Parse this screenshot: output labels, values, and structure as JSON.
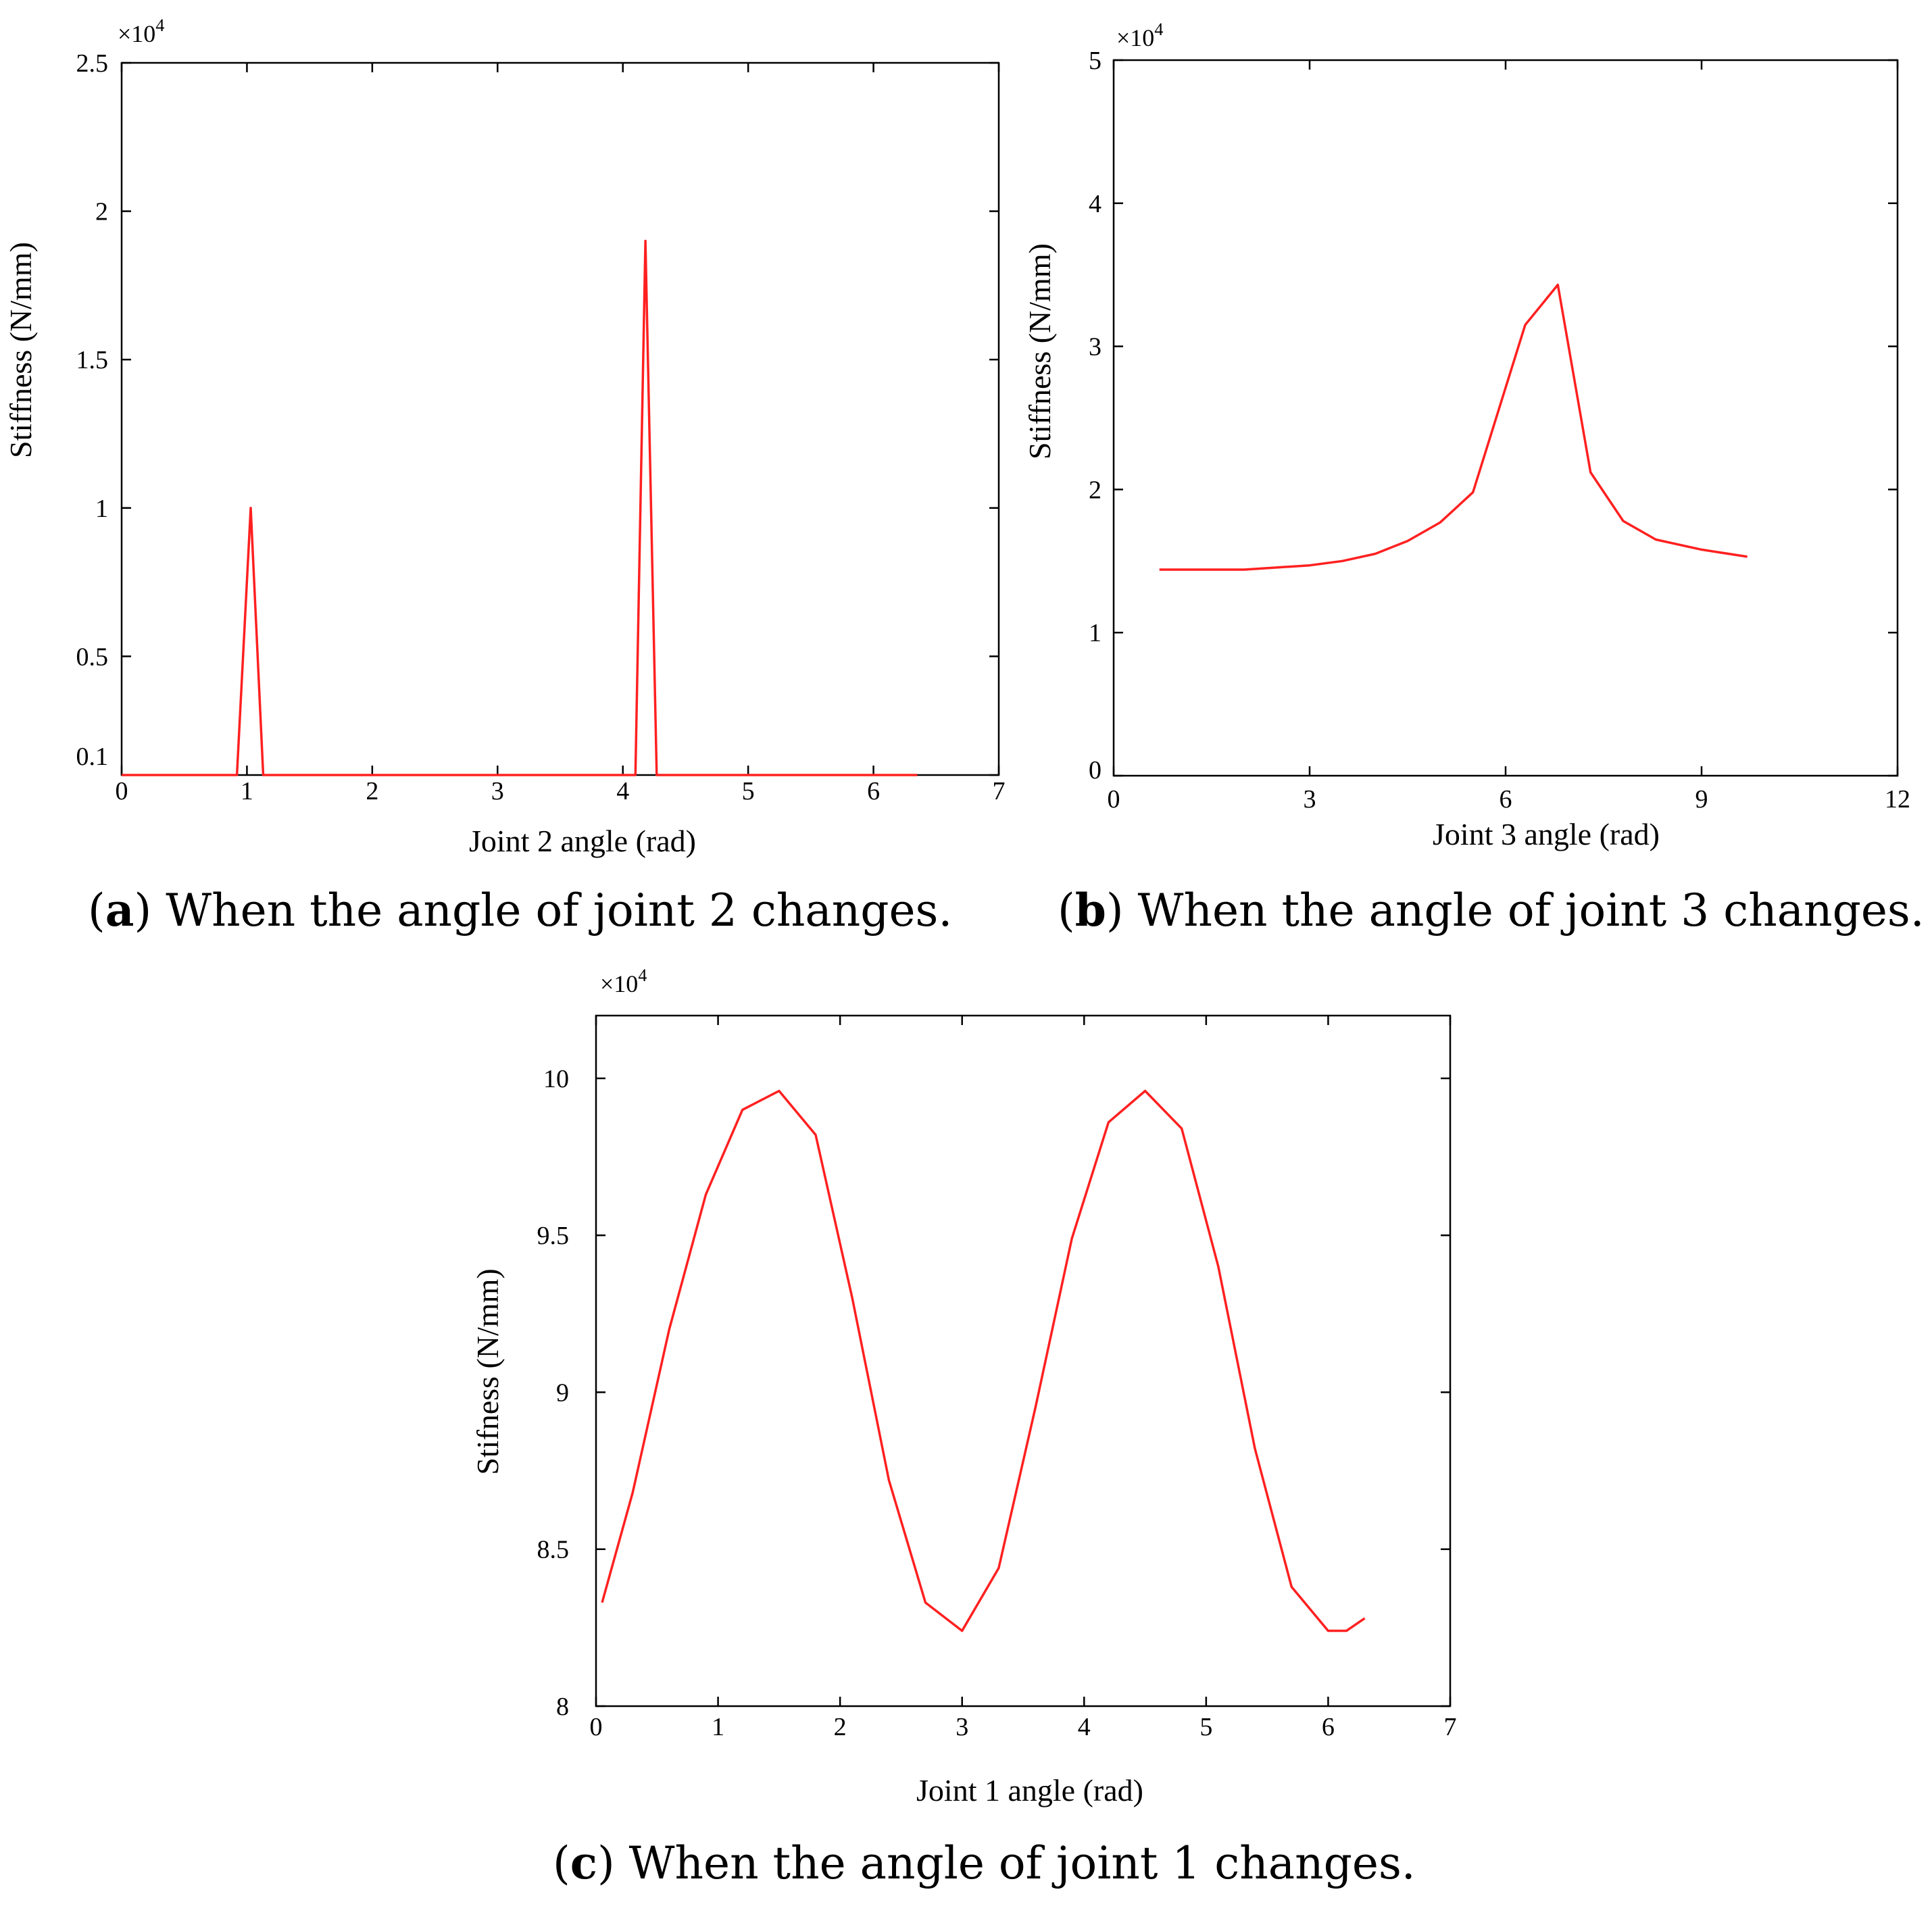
{
  "chart_data": [
    {
      "id": "a",
      "type": "line",
      "xlabel": "Joint 2 angle (rad)",
      "ylabel": "Stiffness (N/mm)",
      "y_multiplier": "×10",
      "y_multiplier_exp": "4",
      "xlim": [
        0,
        7
      ],
      "ylim": [
        0.1,
        2.5
      ],
      "xticks": [
        0,
        1,
        2,
        3,
        4,
        5,
        6,
        7
      ],
      "yticks": [
        0.1,
        0.5,
        1,
        1.5,
        2,
        2.5
      ],
      "ytick_labels": [
        "0.1",
        "0.5",
        "1",
        "1.5",
        "2",
        "2.5"
      ],
      "series": [
        {
          "color": "#ff2020",
          "x": [
            0,
            0.92,
            1.03,
            1.13,
            4.1,
            4.18,
            4.27,
            6.35
          ],
          "y": [
            0.1,
            0.1,
            1.0,
            0.1,
            0.1,
            1.9,
            0.1,
            0.1
          ]
        }
      ],
      "caption_letter": "a",
      "caption_text": " When the angle of joint 2 changes."
    },
    {
      "id": "b",
      "type": "line",
      "xlabel": "Joint 3 angle (rad)",
      "ylabel": "Stiffness (N/mm)",
      "y_multiplier": "×10",
      "y_multiplier_exp": "4",
      "xlim": [
        0,
        12
      ],
      "ylim": [
        0,
        5
      ],
      "xticks": [
        0,
        3,
        6,
        9,
        12
      ],
      "yticks": [
        0,
        1,
        2,
        3,
        4,
        5
      ],
      "ytick_labels": [
        "0",
        "1",
        "2",
        "3",
        "4",
        "5"
      ],
      "series": [
        {
          "color": "#ff2020",
          "x": [
            0.7,
            2.0,
            3.0,
            3.5,
            4.0,
            4.5,
            5.0,
            5.5,
            6.3,
            6.8,
            7.3,
            7.8,
            8.3,
            9.0,
            9.7
          ],
          "y": [
            1.44,
            1.44,
            1.47,
            1.5,
            1.55,
            1.64,
            1.77,
            1.98,
            3.15,
            3.43,
            2.12,
            1.78,
            1.65,
            1.58,
            1.53
          ]
        }
      ],
      "caption_letter": "b",
      "caption_text": " When the angle of joint 3 changes."
    },
    {
      "id": "c",
      "type": "line",
      "xlabel": "Joint 1 angle (rad)",
      "ylabel": "Stifness (N/mm)",
      "y_multiplier": "×10",
      "y_multiplier_exp": "4",
      "xlim": [
        0,
        7
      ],
      "ylim": [
        8,
        10.2
      ],
      "xticks": [
        0,
        1,
        2,
        3,
        4,
        5,
        6,
        7
      ],
      "yticks": [
        8,
        8.5,
        9,
        9.5,
        10
      ],
      "ytick_labels": [
        "8",
        "8.5",
        "9",
        "9.5",
        "10"
      ],
      "series": [
        {
          "color": "#ff2020",
          "x": [
            0.05,
            0.3,
            0.6,
            0.9,
            1.2,
            1.5,
            1.8,
            2.1,
            2.4,
            2.7,
            3.0,
            3.3,
            3.6,
            3.9,
            4.2,
            4.5,
            4.8,
            5.1,
            5.4,
            5.7,
            6.0,
            6.15,
            6.3
          ],
          "y": [
            8.33,
            8.68,
            9.2,
            9.63,
            9.9,
            9.96,
            9.82,
            9.3,
            8.72,
            8.33,
            8.24,
            8.44,
            8.95,
            9.49,
            9.86,
            9.96,
            9.84,
            9.4,
            8.82,
            8.38,
            8.24,
            8.24,
            8.28
          ]
        }
      ],
      "caption_letter": "c",
      "caption_text": " When the angle of joint 1 changes."
    }
  ]
}
